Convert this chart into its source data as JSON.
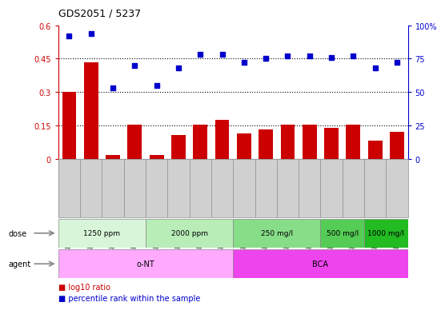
{
  "title": "GDS2051 / 5237",
  "samples": [
    "GSM105783",
    "GSM105784",
    "GSM105785",
    "GSM105786",
    "GSM105787",
    "GSM105788",
    "GSM105789",
    "GSM105790",
    "GSM105775",
    "GSM105776",
    "GSM105777",
    "GSM105778",
    "GSM105779",
    "GSM105780",
    "GSM105781",
    "GSM105782"
  ],
  "log10_ratio": [
    0.3,
    0.435,
    0.015,
    0.155,
    0.015,
    0.105,
    0.155,
    0.175,
    0.115,
    0.13,
    0.155,
    0.155,
    0.14,
    0.155,
    0.08,
    0.12
  ],
  "percentile_rank": [
    92,
    94,
    53,
    70,
    55,
    68,
    78,
    78,
    72,
    75,
    77,
    77,
    76,
    77,
    68,
    72
  ],
  "ylim_left": [
    0,
    0.6
  ],
  "ylim_right": [
    0,
    100
  ],
  "yticks_left": [
    0,
    0.15,
    0.3,
    0.45,
    0.6
  ],
  "yticks_right": [
    0,
    25,
    50,
    75,
    100
  ],
  "hlines": [
    0.15,
    0.3,
    0.45
  ],
  "bar_color": "#cc0000",
  "scatter_color": "#0000cc",
  "dose_groups": [
    {
      "label": "1250 ppm",
      "start": 0,
      "end": 4,
      "color": "#d9f5d9"
    },
    {
      "label": "2000 ppm",
      "start": 4,
      "end": 8,
      "color": "#b8edb8"
    },
    {
      "label": "250 mg/l",
      "start": 8,
      "end": 12,
      "color": "#88dd88"
    },
    {
      "label": "500 mg/l",
      "start": 12,
      "end": 14,
      "color": "#55cc55"
    },
    {
      "label": "1000 mg/l",
      "start": 14,
      "end": 16,
      "color": "#22bb22"
    }
  ],
  "agent_groups": [
    {
      "label": "o-NT",
      "start": 0,
      "end": 8,
      "color": "#ffaaff"
    },
    {
      "label": "BCA",
      "start": 8,
      "end": 16,
      "color": "#ee44ee"
    }
  ],
  "dose_label": "dose",
  "agent_label": "agent",
  "legend_bar_label": "log10 ratio",
  "legend_scatter_label": "percentile rank within the sample",
  "bar_color_legend": "#cc0000",
  "scatter_color_legend": "#0000cc",
  "xtick_bg_color": "#d0d0d0",
  "border_color": "#888888"
}
